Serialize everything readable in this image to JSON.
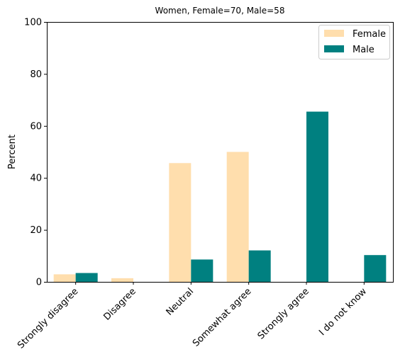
{
  "chart_data": {
    "type": "bar",
    "title": "Women, Female=70, Male=58",
    "xlabel": "",
    "ylabel": "Percent",
    "ylim": [
      0,
      100
    ],
    "yticks": [
      0,
      20,
      40,
      60,
      80,
      100
    ],
    "categories": [
      "Strongly disagree",
      "Disagree",
      "Neutral",
      "Somewhat agree",
      "Strongly agree",
      "I do not know"
    ],
    "series": [
      {
        "name": "Female",
        "color": "#FFDEAD",
        "values": [
          2.9,
          1.4,
          45.7,
          50.0,
          0.0,
          0.0
        ]
      },
      {
        "name": "Male",
        "color": "#008080",
        "values": [
          3.4,
          0.0,
          8.6,
          12.1,
          65.5,
          10.3
        ]
      }
    ],
    "legend": {
      "position": "top-right"
    },
    "grid": false
  }
}
